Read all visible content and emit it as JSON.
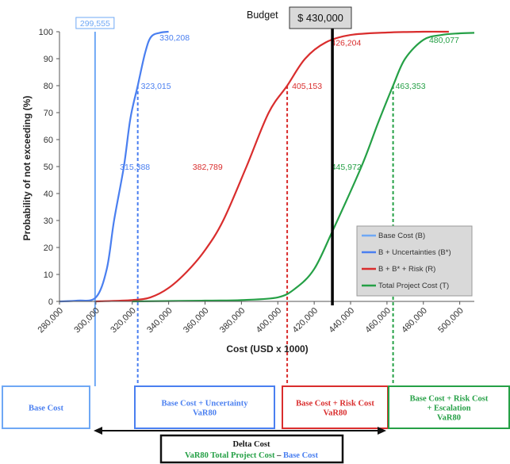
{
  "chart_data": {
    "type": "line",
    "title": "",
    "xlabel": "Cost (USD x 1000)",
    "ylabel": "Probability of not exceeding (%)",
    "xlim": [
      280000,
      508000
    ],
    "ylim": [
      0,
      100
    ],
    "x_ticks": [
      280000,
      300000,
      320000,
      340000,
      360000,
      380000,
      400000,
      420000,
      440000,
      460000,
      480000,
      500000
    ],
    "x_tick_labels": [
      "280,000",
      "300,000",
      "320,000",
      "340,000",
      "360,000",
      "380,000",
      "400,000",
      "420,000",
      "440,000",
      "460,000",
      "480,000",
      "500,000"
    ],
    "y_ticks": [
      0,
      10,
      20,
      30,
      40,
      50,
      60,
      70,
      80,
      90,
      100
    ],
    "y_tick_labels": [
      "0",
      "10",
      "20",
      "30",
      "40",
      "50",
      "60",
      "70",
      "80",
      "90",
      "100"
    ],
    "grid": false,
    "legend_position": "bottom-right",
    "series": [
      {
        "name": "Base Cost (B)",
        "color": "#6fa8f5",
        "points": [
          [
            299555,
            0
          ],
          [
            299555,
            100
          ]
        ]
      },
      {
        "name": "B + Uncertainties (B*)",
        "color": "#4a7ff0",
        "points": [
          [
            280000,
            0
          ],
          [
            290000,
            0.3
          ],
          [
            300000,
            1.5
          ],
          [
            306000,
            12
          ],
          [
            310000,
            30
          ],
          [
            315388,
            50
          ],
          [
            319000,
            68
          ],
          [
            323015,
            80
          ],
          [
            327000,
            92
          ],
          [
            330208,
            98
          ],
          [
            335000,
            99.6
          ],
          [
            340000,
            100
          ]
        ]
      },
      {
        "name": "B + B* + Risk (R)",
        "color": "#d92d2d",
        "points": [
          [
            300000,
            0
          ],
          [
            320000,
            0.5
          ],
          [
            330000,
            1.5
          ],
          [
            340000,
            5
          ],
          [
            350000,
            11
          ],
          [
            360000,
            19
          ],
          [
            370000,
            30
          ],
          [
            382789,
            50
          ],
          [
            395000,
            70
          ],
          [
            405153,
            80
          ],
          [
            415000,
            90
          ],
          [
            426204,
            96
          ],
          [
            440000,
            98.8
          ],
          [
            460000,
            99.7
          ],
          [
            480000,
            100
          ],
          [
            494000,
            100
          ]
        ]
      },
      {
        "name": "Total Project Cost (T)",
        "color": "#25a046",
        "points": [
          [
            320000,
            0
          ],
          [
            360000,
            0.3
          ],
          [
            380000,
            0.5
          ],
          [
            400000,
            1.5
          ],
          [
            410000,
            5
          ],
          [
            420000,
            12
          ],
          [
            430000,
            26
          ],
          [
            445972,
            50
          ],
          [
            455000,
            66
          ],
          [
            463353,
            80
          ],
          [
            470000,
            90
          ],
          [
            480077,
            97
          ],
          [
            490000,
            98.8
          ],
          [
            500000,
            99.4
          ],
          [
            508000,
            99.6
          ]
        ]
      }
    ],
    "annotations": [
      {
        "text": "299,555",
        "x": 299555,
        "y": 100,
        "color": "#6fa8f5"
      },
      {
        "text": "330,208",
        "x": 330208,
        "y": 98,
        "color": "#4a7ff0"
      },
      {
        "text": "323,015",
        "x": 323015,
        "y": 80,
        "color": "#4a7ff0"
      },
      {
        "text": "315,388",
        "x": 315388,
        "y": 50,
        "color": "#4a7ff0"
      },
      {
        "text": "382,789",
        "x": 382789,
        "y": 50,
        "color": "#d92d2d"
      },
      {
        "text": "405,153",
        "x": 405153,
        "y": 80,
        "color": "#d92d2d"
      },
      {
        "text": "426,204",
        "x": 426204,
        "y": 96,
        "color": "#d92d2d"
      },
      {
        "text": "445,972",
        "x": 445972,
        "y": 50,
        "color": "#25a046"
      },
      {
        "text": "463,353",
        "x": 463353,
        "y": 80,
        "color": "#25a046"
      },
      {
        "text": "480,077",
        "x": 480077,
        "y": 97,
        "color": "#25a046"
      }
    ],
    "budget": {
      "label": "Budget",
      "value_label": "$ 430,000",
      "x": 430000,
      "color": "#000000"
    },
    "var80_lines": [
      {
        "x": 323015,
        "color": "#4a7ff0"
      },
      {
        "x": 405153,
        "color": "#d92d2d"
      },
      {
        "x": 463353,
        "color": "#25a046"
      }
    ],
    "boxes": [
      {
        "lines": [
          "Base Cost"
        ],
        "colors": [
          "#4a7ff0"
        ],
        "border": "#6fa8f5"
      },
      {
        "lines": [
          "Base Cost + Uncertainty",
          "VaR80"
        ],
        "colors": [
          "#4a7ff0",
          "#4a7ff0"
        ],
        "border": "#4a7ff0"
      },
      {
        "lines": [
          "Base Cost + Risk Cost",
          "VaR80"
        ],
        "colors": [
          "#d92d2d",
          "#d92d2d"
        ],
        "border": "#d92d2d"
      },
      {
        "lines": [
          "Base Cost + Risk Cost",
          "+ Escalation",
          "VaR80"
        ],
        "colors": [
          "#25a046",
          "#25a046",
          "#25a046"
        ],
        "border": "#25a046"
      }
    ],
    "delta_box": {
      "title": "Delta Cost",
      "line2_part1": "VaR80 Total Project Cost",
      "line2_sep": " – ",
      "line2_part2": "Base Cost",
      "colors": {
        "title": "#111111",
        "part1": "#25a046",
        "sep": "#111111",
        "part2": "#4a7ff0"
      }
    }
  }
}
